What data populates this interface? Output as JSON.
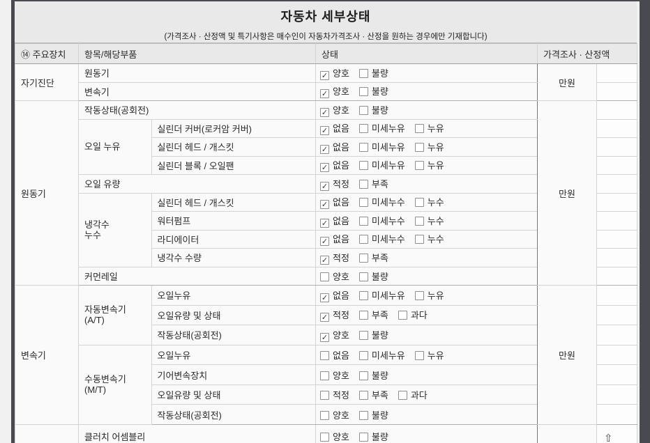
{
  "title": "자동차 세부상태",
  "subtitle": "(가격조사 · 산정액 및 특기사항은 매수인이 자동차가격조사 · 산정을 원하는 경우에만 기재합니다)",
  "columns": {
    "device": "⑭ 주요장치",
    "item": "항목/해당부품",
    "status": "상태",
    "price": "가격조사 · 산정액"
  },
  "icons": {
    "check_icon": "✓",
    "up_arrow_icon": "⇧"
  },
  "colors": {
    "frame_dark": "#494950",
    "header_bg": "#e9e9e9",
    "body_bg": "#fafafa",
    "border_light": "#d4d4d4",
    "border_group": "#b0b0b0",
    "price_divider_dark": "#76767a",
    "text": "#2a2a2a"
  },
  "sections": [
    {
      "name": "자기진단",
      "price_unit": "만원",
      "rows": [
        {
          "item": "원동기",
          "options": [
            {
              "label": "양호",
              "checked": true
            },
            {
              "label": "불량",
              "checked": false
            }
          ]
        },
        {
          "item": "변속기",
          "options": [
            {
              "label": "양호",
              "checked": true
            },
            {
              "label": "불량",
              "checked": false
            }
          ]
        }
      ]
    },
    {
      "name": "원동기",
      "price_unit": "만원",
      "rows": [
        {
          "item": "작동상태(공회전)",
          "options": [
            {
              "label": "양호",
              "checked": true
            },
            {
              "label": "불량",
              "checked": false
            }
          ]
        },
        {
          "sub": [
            "오일 누유"
          ],
          "sub_span": 3,
          "item": "실린더 커버(로커암 커버)",
          "options": [
            {
              "label": "없음",
              "checked": true
            },
            {
              "label": "미세누유",
              "checked": false
            },
            {
              "label": "누유",
              "checked": false
            }
          ]
        },
        {
          "item": "실린더 헤드 / 개스킷",
          "options": [
            {
              "label": "없음",
              "checked": true
            },
            {
              "label": "미세누유",
              "checked": false
            },
            {
              "label": "누유",
              "checked": false
            }
          ]
        },
        {
          "item": "실린더 블록 / 오일팬",
          "options": [
            {
              "label": "없음",
              "checked": true
            },
            {
              "label": "미세누유",
              "checked": false
            },
            {
              "label": "누유",
              "checked": false
            }
          ]
        },
        {
          "item": "오일 유량",
          "options": [
            {
              "label": "적정",
              "checked": true
            },
            {
              "label": "부족",
              "checked": false
            }
          ]
        },
        {
          "sub": [
            "냉각수",
            "누수"
          ],
          "sub_span": 4,
          "item": "실린더 헤드 / 개스킷",
          "options": [
            {
              "label": "없음",
              "checked": true
            },
            {
              "label": "미세누수",
              "checked": false
            },
            {
              "label": "누수",
              "checked": false
            }
          ]
        },
        {
          "item": "워터펌프",
          "options": [
            {
              "label": "없음",
              "checked": true
            },
            {
              "label": "미세누수",
              "checked": false
            },
            {
              "label": "누수",
              "checked": false
            }
          ]
        },
        {
          "item": "라디에이터",
          "options": [
            {
              "label": "없음",
              "checked": true
            },
            {
              "label": "미세누수",
              "checked": false
            },
            {
              "label": "누수",
              "checked": false
            }
          ]
        },
        {
          "item": "냉각수 수량",
          "options": [
            {
              "label": "적정",
              "checked": true
            },
            {
              "label": "부족",
              "checked": false
            }
          ]
        },
        {
          "item": "커먼레일",
          "options": [
            {
              "label": "양호",
              "checked": false
            },
            {
              "label": "불량",
              "checked": false
            }
          ]
        }
      ]
    },
    {
      "name": "변속기",
      "price_unit": "만원",
      "rows": [
        {
          "sub": [
            "자동변속기",
            "(A/T)"
          ],
          "sub_span": 3,
          "item": "오일누유",
          "options": [
            {
              "label": "없음",
              "checked": true
            },
            {
              "label": "미세누유",
              "checked": false
            },
            {
              "label": "누유",
              "checked": false
            }
          ]
        },
        {
          "item": "오일유량 및 상태",
          "options": [
            {
              "label": "적정",
              "checked": true
            },
            {
              "label": "부족",
              "checked": false
            },
            {
              "label": "과다",
              "checked": false
            }
          ]
        },
        {
          "item": "작동상태(공회전)",
          "options": [
            {
              "label": "양호",
              "checked": true
            },
            {
              "label": "불량",
              "checked": false
            }
          ]
        },
        {
          "sub": [
            "수동변속기",
            "(M/T)"
          ],
          "sub_span": 4,
          "item": "오일누유",
          "options": [
            {
              "label": "없음",
              "checked": false
            },
            {
              "label": "미세누유",
              "checked": false
            },
            {
              "label": "누유",
              "checked": false
            }
          ]
        },
        {
          "item": "기어변속장치",
          "options": [
            {
              "label": "양호",
              "checked": false
            },
            {
              "label": "불량",
              "checked": false
            }
          ]
        },
        {
          "item": "오일유량 및 상태",
          "options": [
            {
              "label": "적정",
              "checked": false
            },
            {
              "label": "부족",
              "checked": false
            },
            {
              "label": "과다",
              "checked": false
            }
          ]
        },
        {
          "item": "작동상태(공회전)",
          "options": [
            {
              "label": "양호",
              "checked": false
            },
            {
              "label": "불량",
              "checked": false
            }
          ]
        }
      ]
    },
    {
      "name": "",
      "price_unit": "",
      "rows": [
        {
          "item": "클러치 어셈블리",
          "options": [
            {
              "label": "양호",
              "checked": false
            },
            {
              "label": "불량",
              "checked": false
            }
          ],
          "cursor": true
        }
      ]
    }
  ]
}
